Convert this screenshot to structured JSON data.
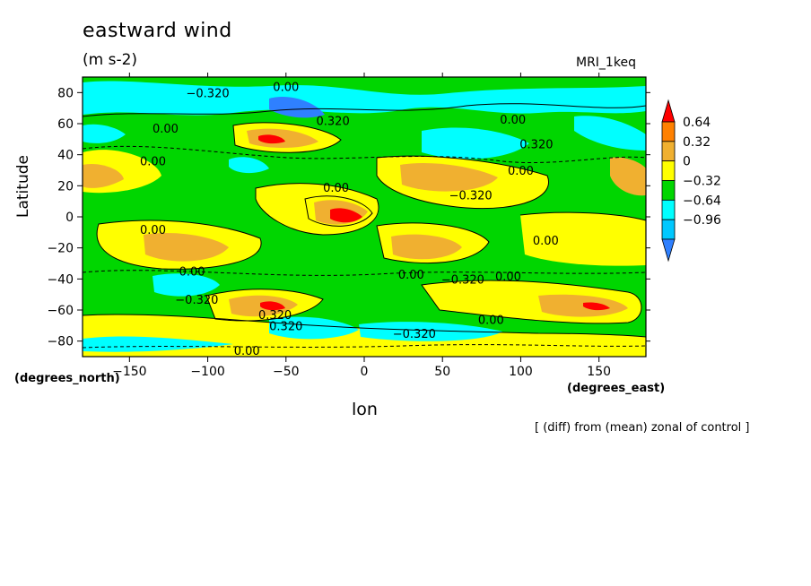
{
  "chart_data": {
    "type": "heatmap",
    "title": "eastward wind",
    "units": "(m s-2)",
    "model_label": "MRI_1keq",
    "xlabel": "lon",
    "xlabel_units": "(degrees_east)",
    "ylabel": "Latitude",
    "ylabel_units": "(degrees_north)",
    "footnote": "[ (diff) from (mean) zonal of control ]",
    "xlim": [
      -180,
      180
    ],
    "ylim": [
      -90,
      90
    ],
    "xticks": [
      -150,
      -100,
      -50,
      0,
      50,
      100,
      150
    ],
    "yticks": [
      80,
      60,
      40,
      20,
      0,
      -20,
      -40,
      -60,
      -80
    ],
    "colorbar": {
      "levels": [
        -0.96,
        -0.64,
        -0.32,
        0,
        0.32,
        0.64
      ],
      "tick_labels": [
        "0.64",
        "0.32",
        "0",
        "−0.32",
        "−0.64",
        "−0.96"
      ],
      "colors": [
        "#2f80ff",
        "#00c8ff",
        "#00ffff",
        "#00d600",
        "#ffff00",
        "#f0b030",
        "#ff8000",
        "#ff0000"
      ]
    },
    "contour_labels": [
      {
        "text": "−0.320",
        "lon": -100,
        "lat": 80
      },
      {
        "text": "0.00",
        "lon": -50,
        "lat": 84
      },
      {
        "text": "0.00",
        "lon": -127,
        "lat": 57
      },
      {
        "text": "0.320",
        "lon": -20,
        "lat": 62
      },
      {
        "text": "0.00",
        "lon": -135,
        "lat": 36
      },
      {
        "text": "0.00",
        "lon": 95,
        "lat": 63
      },
      {
        "text": "0.320",
        "lon": 110,
        "lat": 47
      },
      {
        "text": "0.00",
        "lon": 100,
        "lat": 30
      },
      {
        "text": "0.00",
        "lon": -18,
        "lat": 19
      },
      {
        "text": "−0.320",
        "lon": 68,
        "lat": 14
      },
      {
        "text": "0.00",
        "lon": -135,
        "lat": -8
      },
      {
        "text": "0.00",
        "lon": 116,
        "lat": -15
      },
      {
        "text": "0.00",
        "lon": -110,
        "lat": -35
      },
      {
        "text": "0.00",
        "lon": 30,
        "lat": -37
      },
      {
        "text": "−0.320",
        "lon": 63,
        "lat": -40
      },
      {
        "text": "0.00",
        "lon": 92,
        "lat": -38
      },
      {
        "text": "−0.320",
        "lon": -107,
        "lat": -53
      },
      {
        "text": "0.320",
        "lon": -57,
        "lat": -63
      },
      {
        "text": "0.320",
        "lon": -50,
        "lat": -70
      },
      {
        "text": "0.00",
        "lon": 81,
        "lat": -66
      },
      {
        "text": "−0.320",
        "lon": 32,
        "lat": -75
      },
      {
        "text": "0.00",
        "lon": -75,
        "lat": -86
      }
    ]
  }
}
